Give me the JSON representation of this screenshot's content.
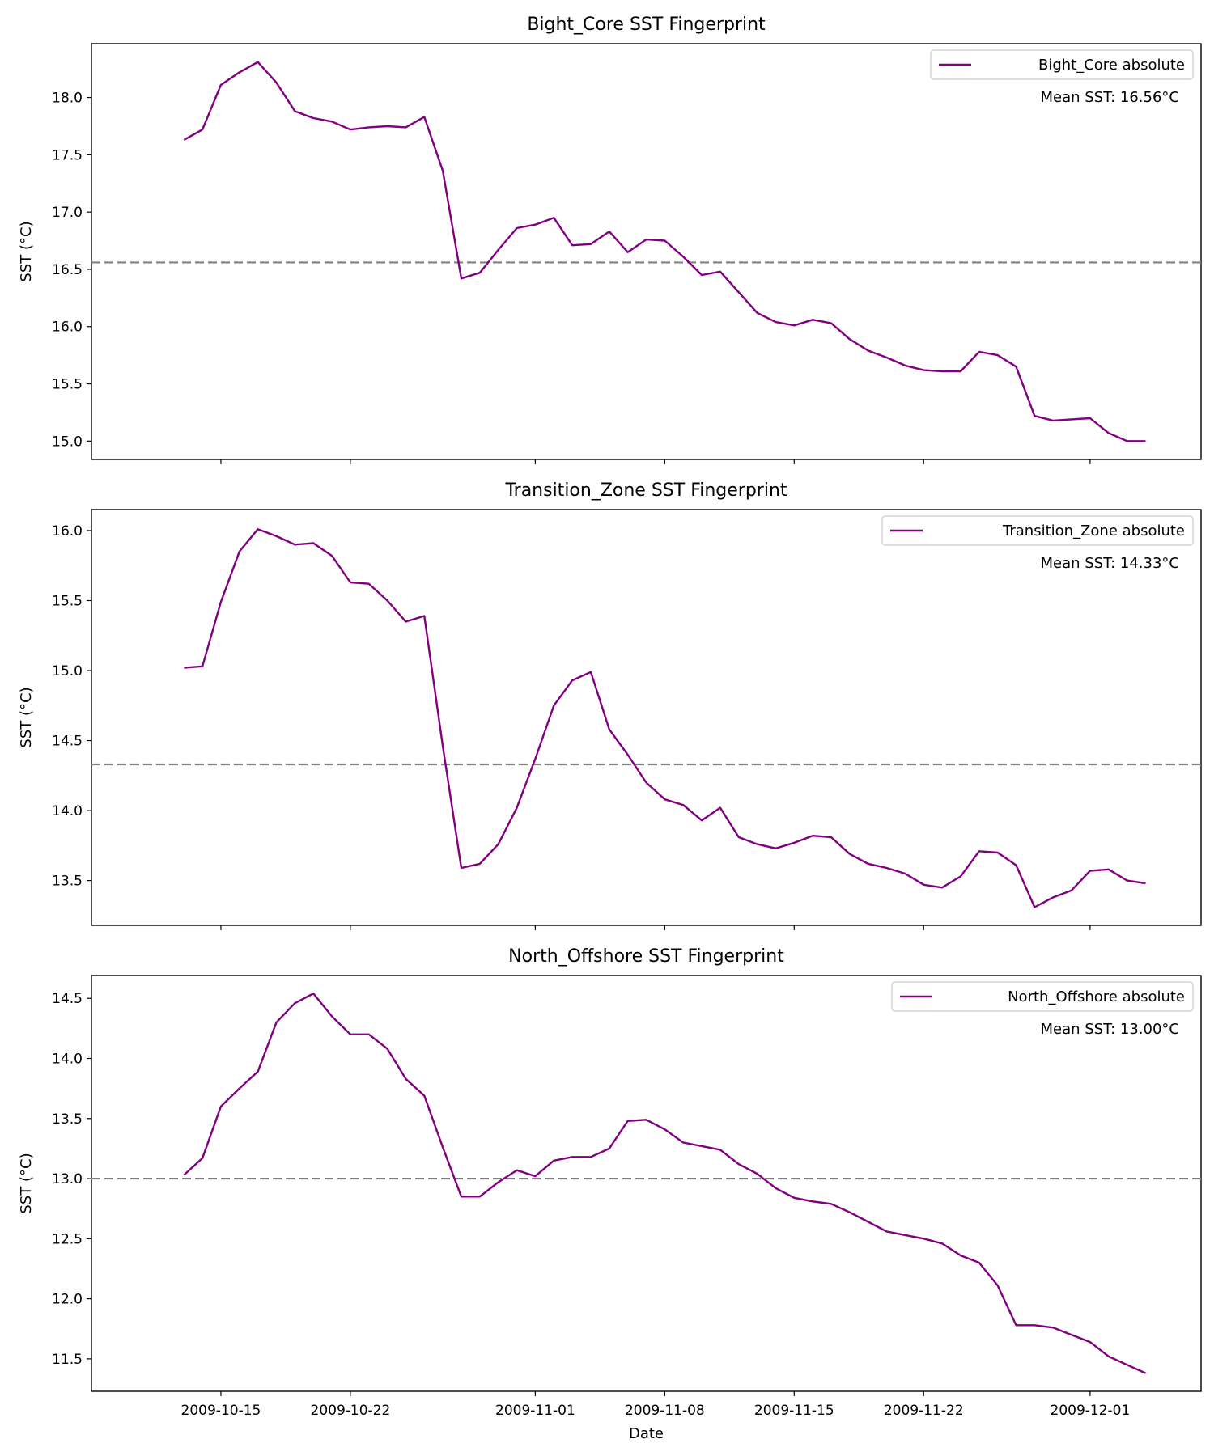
{
  "line_color": "#800080",
  "mean_line_color": "#808080",
  "chart_data": [
    {
      "type": "line",
      "title": "Bight_Core SST Fingerprint",
      "xlabel": "",
      "ylabel": "SST (°C)",
      "ylim": [
        14.84,
        18.47
      ],
      "yticks": [
        "15.0",
        "15.5",
        "16.0",
        "16.5",
        "17.0",
        "17.5",
        "18.0"
      ],
      "xlim": [
        "2009-10-08",
        "2009-12-07"
      ],
      "xticks": [
        "2009-10-15",
        "2009-10-22",
        "2009-11-01",
        "2009-11-08",
        "2009-11-15",
        "2009-11-22",
        "2009-12-01"
      ],
      "show_xtick_labels": false,
      "grid": false,
      "legend_position": "top-right",
      "annotation": "Mean SST: 16.56°C",
      "mean_line": 16.56,
      "series": [
        {
          "name": "Bight_Core absolute",
          "x": [
            "2009-10-13",
            "2009-10-14",
            "2009-10-15",
            "2009-10-16",
            "2009-10-17",
            "2009-10-18",
            "2009-10-19",
            "2009-10-20",
            "2009-10-21",
            "2009-10-22",
            "2009-10-23",
            "2009-10-24",
            "2009-10-25",
            "2009-10-26",
            "2009-10-27",
            "2009-10-28",
            "2009-10-29",
            "2009-10-30",
            "2009-10-31",
            "2009-11-01",
            "2009-11-02",
            "2009-11-03",
            "2009-11-04",
            "2009-11-05",
            "2009-11-06",
            "2009-11-07",
            "2009-11-08",
            "2009-11-09",
            "2009-11-10",
            "2009-11-11",
            "2009-11-12",
            "2009-11-13",
            "2009-11-14",
            "2009-11-15",
            "2009-11-16",
            "2009-11-17",
            "2009-11-18",
            "2009-11-19",
            "2009-11-20",
            "2009-11-21",
            "2009-11-22",
            "2009-11-23",
            "2009-11-24",
            "2009-11-25",
            "2009-11-26",
            "2009-11-27",
            "2009-11-28",
            "2009-11-29",
            "2009-11-30",
            "2009-12-01",
            "2009-12-02",
            "2009-12-03",
            "2009-12-04"
          ],
          "values": [
            17.63,
            17.72,
            18.11,
            18.22,
            18.31,
            18.13,
            17.88,
            17.82,
            17.79,
            17.72,
            17.74,
            17.75,
            17.74,
            17.83,
            17.36,
            16.42,
            16.47,
            16.67,
            16.86,
            16.89,
            16.95,
            16.71,
            16.72,
            16.83,
            16.65,
            16.76,
            16.75,
            16.61,
            16.45,
            16.48,
            16.3,
            16.12,
            16.04,
            16.01,
            16.06,
            16.03,
            15.89,
            15.79,
            15.73,
            15.66,
            15.62,
            15.61,
            15.61,
            15.78,
            15.75,
            15.65,
            15.22,
            15.18,
            15.19,
            15.2,
            15.07,
            15.0,
            15.0
          ]
        }
      ]
    },
    {
      "type": "line",
      "title": "Transition_Zone SST Fingerprint",
      "xlabel": "",
      "ylabel": "SST (°C)",
      "ylim": [
        13.18,
        16.15
      ],
      "yticks": [
        "13.5",
        "14.0",
        "14.5",
        "15.0",
        "15.5",
        "16.0"
      ],
      "xlim": [
        "2009-10-08",
        "2009-12-07"
      ],
      "xticks": [
        "2009-10-15",
        "2009-10-22",
        "2009-11-01",
        "2009-11-08",
        "2009-11-15",
        "2009-11-22",
        "2009-12-01"
      ],
      "show_xtick_labels": false,
      "grid": false,
      "legend_position": "top-right",
      "annotation": "Mean SST: 14.33°C",
      "mean_line": 14.33,
      "series": [
        {
          "name": "Transition_Zone absolute",
          "x": [
            "2009-10-13",
            "2009-10-14",
            "2009-10-15",
            "2009-10-16",
            "2009-10-17",
            "2009-10-18",
            "2009-10-19",
            "2009-10-20",
            "2009-10-21",
            "2009-10-22",
            "2009-10-23",
            "2009-10-24",
            "2009-10-25",
            "2009-10-26",
            "2009-10-27",
            "2009-10-28",
            "2009-10-29",
            "2009-10-30",
            "2009-10-31",
            "2009-11-01",
            "2009-11-02",
            "2009-11-03",
            "2009-11-04",
            "2009-11-05",
            "2009-11-06",
            "2009-11-07",
            "2009-11-08",
            "2009-11-09",
            "2009-11-10",
            "2009-11-11",
            "2009-11-12",
            "2009-11-13",
            "2009-11-14",
            "2009-11-15",
            "2009-11-16",
            "2009-11-17",
            "2009-11-18",
            "2009-11-19",
            "2009-11-20",
            "2009-11-21",
            "2009-11-22",
            "2009-11-23",
            "2009-11-24",
            "2009-11-25",
            "2009-11-26",
            "2009-11-27",
            "2009-11-28",
            "2009-11-29",
            "2009-11-30",
            "2009-12-01",
            "2009-12-02",
            "2009-12-03",
            "2009-12-04"
          ],
          "values": [
            15.02,
            15.03,
            15.49,
            15.85,
            16.01,
            15.96,
            15.9,
            15.91,
            15.82,
            15.63,
            15.62,
            15.5,
            15.35,
            15.39,
            14.46,
            13.59,
            13.62,
            13.76,
            14.02,
            14.37,
            14.75,
            14.93,
            14.99,
            14.58,
            14.4,
            14.2,
            14.08,
            14.04,
            13.93,
            14.02,
            13.81,
            13.76,
            13.73,
            13.77,
            13.82,
            13.81,
            13.69,
            13.62,
            13.59,
            13.55,
            13.47,
            13.45,
            13.53,
            13.71,
            13.7,
            13.61,
            13.31,
            13.38,
            13.43,
            13.57,
            13.58,
            13.5,
            13.48
          ]
        }
      ]
    },
    {
      "type": "line",
      "title": "North_Offshore SST Fingerprint",
      "xlabel": "Date",
      "ylabel": "SST (°C)",
      "ylim": [
        11.23,
        14.69
      ],
      "yticks": [
        "11.5",
        "12.0",
        "12.5",
        "13.0",
        "13.5",
        "14.0",
        "14.5"
      ],
      "xlim": [
        "2009-10-08",
        "2009-12-07"
      ],
      "xticks": [
        "2009-10-15",
        "2009-10-22",
        "2009-11-01",
        "2009-11-08",
        "2009-11-15",
        "2009-11-22",
        "2009-12-01"
      ],
      "show_xtick_labels": true,
      "grid": false,
      "legend_position": "top-right",
      "annotation": "Mean SST: 13.00°C",
      "mean_line": 13.0,
      "series": [
        {
          "name": "North_Offshore absolute",
          "x": [
            "2009-10-13",
            "2009-10-14",
            "2009-10-15",
            "2009-10-16",
            "2009-10-17",
            "2009-10-18",
            "2009-10-19",
            "2009-10-20",
            "2009-10-21",
            "2009-10-22",
            "2009-10-23",
            "2009-10-24",
            "2009-10-25",
            "2009-10-26",
            "2009-10-27",
            "2009-10-28",
            "2009-10-29",
            "2009-10-30",
            "2009-10-31",
            "2009-11-01",
            "2009-11-02",
            "2009-11-03",
            "2009-11-04",
            "2009-11-05",
            "2009-11-06",
            "2009-11-07",
            "2009-11-08",
            "2009-11-09",
            "2009-11-10",
            "2009-11-11",
            "2009-11-12",
            "2009-11-13",
            "2009-11-14",
            "2009-11-15",
            "2009-11-16",
            "2009-11-17",
            "2009-11-18",
            "2009-11-19",
            "2009-11-20",
            "2009-11-21",
            "2009-11-22",
            "2009-11-23",
            "2009-11-24",
            "2009-11-25",
            "2009-11-26",
            "2009-11-27",
            "2009-11-28",
            "2009-11-29",
            "2009-11-30",
            "2009-12-01",
            "2009-12-02",
            "2009-12-03",
            "2009-12-04"
          ],
          "values": [
            13.03,
            13.17,
            13.6,
            13.75,
            13.89,
            14.3,
            14.46,
            14.54,
            14.35,
            14.2,
            14.2,
            14.08,
            13.83,
            13.69,
            13.26,
            12.85,
            12.85,
            12.97,
            13.07,
            13.02,
            13.15,
            13.18,
            13.18,
            13.25,
            13.48,
            13.49,
            13.41,
            13.3,
            13.27,
            13.24,
            13.12,
            13.04,
            12.92,
            12.84,
            12.81,
            12.79,
            12.72,
            12.64,
            12.56,
            12.53,
            12.5,
            12.46,
            12.36,
            12.3,
            12.11,
            11.78,
            11.78,
            11.76,
            11.7,
            11.64,
            11.52,
            11.45,
            11.38
          ]
        }
      ]
    }
  ]
}
